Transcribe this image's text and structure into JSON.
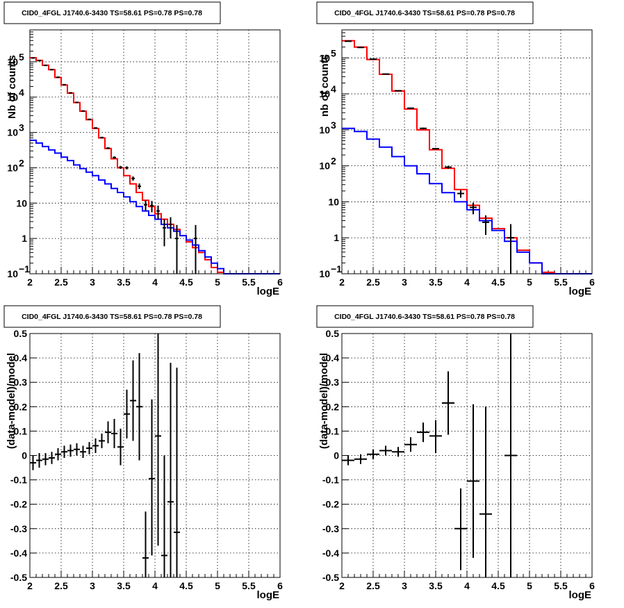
{
  "panels": [
    {
      "id": "counts-binned-fine",
      "title": "CID0_4FGL J1740.6-3430 TS=58.61 PS=0.78 PS=0.78",
      "xlabel": "logE",
      "ylabel": "Nb of counts"
    },
    {
      "id": "counts-binned-coarse",
      "title": "CID0_4FGL J1740.6-3430 TS=58.61 PS=0.78 PS=0.78",
      "xlabel": "logE",
      "ylabel": "nb of counts"
    },
    {
      "id": "residuals-fine",
      "title": "CID0_4FGL J1740.6-3430 TS=58.61 PS=0.78 PS=0.78",
      "xlabel": "logE",
      "ylabel": "(data-model)/model"
    },
    {
      "id": "residuals-coarse",
      "title": "CID0_4FGL J1740.6-3430 TS=58.61 PS=0.78 PS=0.78",
      "xlabel": "logE",
      "ylabel": "(data-model)/model"
    }
  ],
  "colors": {
    "total_model": "#ff0000",
    "source_model": "#0000ff",
    "data": "#000000"
  },
  "chart_data": [
    {
      "type": "line",
      "title": "CID0_4FGL J1740.6-3430 TS=58.61 PS=0.78 PS=0.78",
      "xlabel": "logE",
      "ylabel": "Nb of counts",
      "xlim": [
        2,
        6
      ],
      "ylim": [
        0.1,
        800000
      ],
      "yscale": "log",
      "grid": true,
      "xticks": [
        "2",
        "2.5",
        "3",
        "3.5",
        "4",
        "4.5",
        "5",
        "5.5",
        "6"
      ],
      "yticks": [
        {
          "v": 0.1,
          "label": "10",
          "sup": "−1"
        },
        {
          "v": 1,
          "label": "1"
        },
        {
          "v": 10,
          "label": "10"
        },
        {
          "v": 100,
          "label": "10",
          "sup": "2"
        },
        {
          "v": 1000,
          "label": "10",
          "sup": "3"
        },
        {
          "v": 10000,
          "label": "10",
          "sup": "4"
        },
        {
          "v": 100000,
          "label": "10",
          "sup": "5"
        }
      ],
      "bin_edges": [
        2.0,
        2.1,
        2.2,
        2.3,
        2.4,
        2.5,
        2.6,
        2.7,
        2.8,
        2.9,
        3.0,
        3.1,
        3.2,
        3.3,
        3.4,
        3.5,
        3.6,
        3.7,
        3.8,
        3.9,
        4.0,
        4.1,
        4.2,
        4.3,
        4.4,
        4.5,
        4.6,
        4.7,
        4.8,
        4.9,
        5.0,
        5.1,
        5.2,
        5.3,
        5.4,
        5.5,
        5.6,
        5.7,
        5.8,
        5.9,
        6.0
      ],
      "series": [
        {
          "style": "total_model",
          "values": [
            130000,
            110000,
            80000,
            60000,
            36000,
            22000,
            13000,
            7000,
            4000,
            2300,
            1300,
            700,
            350,
            180,
            100,
            60,
            35,
            20,
            12,
            8,
            5,
            3.5,
            2.5,
            1.8,
            1.2,
            0.8,
            0.55,
            0.4,
            0.25,
            0.15,
            0.11,
            0.1,
            0.1,
            0.1,
            0.1,
            0.1,
            0.1,
            0.1,
            0.1,
            0.1
          ]
        },
        {
          "style": "source_model",
          "values": [
            600,
            500,
            400,
            320,
            260,
            200,
            160,
            120,
            95,
            75,
            60,
            45,
            35,
            26,
            20,
            15,
            11,
            8,
            6,
            4.5,
            3.5,
            2.5,
            2.0,
            1.6,
            1.2,
            0.9,
            0.65,
            0.45,
            0.3,
            0.2,
            0.14,
            0.1,
            0.1,
            0.1,
            0.1,
            0.1,
            0.1,
            0.1,
            0.1,
            0.1
          ]
        },
        {
          "style": "data",
          "points": [
            {
              "x": 2.05,
              "y": 128000,
              "lo": 127000,
              "hi": 129000
            },
            {
              "x": 2.15,
              "y": 108000,
              "lo": 107000,
              "hi": 109000
            },
            {
              "x": 2.25,
              "y": 79000,
              "lo": 78000,
              "hi": 80000
            },
            {
              "x": 2.35,
              "y": 60000,
              "lo": 59500,
              "hi": 60500
            },
            {
              "x": 2.45,
              "y": 36500,
              "lo": 36000,
              "hi": 37000
            },
            {
              "x": 2.55,
              "y": 22500,
              "lo": 22200,
              "hi": 22800
            },
            {
              "x": 2.65,
              "y": 13200,
              "lo": 13000,
              "hi": 13400
            },
            {
              "x": 2.75,
              "y": 7100,
              "lo": 7000,
              "hi": 7200
            },
            {
              "x": 2.85,
              "y": 4050,
              "lo": 4000,
              "hi": 4100
            },
            {
              "x": 2.95,
              "y": 2350,
              "lo": 2300,
              "hi": 2400
            },
            {
              "x": 3.05,
              "y": 1340,
              "lo": 1300,
              "hi": 1380
            },
            {
              "x": 3.15,
              "y": 720,
              "lo": 690,
              "hi": 750
            },
            {
              "x": 3.25,
              "y": 360,
              "lo": 340,
              "hi": 380
            },
            {
              "x": 3.35,
              "y": 195,
              "lo": 180,
              "hi": 210
            },
            {
              "x": 3.45,
              "y": 103,
              "lo": 93,
              "hi": 113
            },
            {
              "x": 3.55,
              "y": 100,
              "lo": 90,
              "hi": 110
            },
            {
              "x": 3.65,
              "y": 50,
              "lo": 43,
              "hi": 57
            },
            {
              "x": 3.75,
              "y": 30,
              "lo": 25,
              "hi": 36
            },
            {
              "x": 3.85,
              "y": 9,
              "lo": 6,
              "hi": 12
            },
            {
              "x": 3.95,
              "y": 8.5,
              "lo": 5.5,
              "hi": 11.5
            },
            {
              "x": 4.05,
              "y": 6,
              "lo": 3.5,
              "hi": 8.5
            },
            {
              "x": 4.15,
              "y": 2,
              "lo": 0.6,
              "hi": 3.5
            },
            {
              "x": 4.25,
              "y": 2.5,
              "lo": 1.0,
              "hi": 4.0
            },
            {
              "x": 4.35,
              "y": 1,
              "lo": 0.1,
              "hi": 2.4
            },
            {
              "x": 4.65,
              "y": 1,
              "lo": 0.1,
              "hi": 2.4
            }
          ]
        }
      ]
    },
    {
      "type": "line",
      "title": "CID0_4FGL J1740.6-3430 TS=58.61 PS=0.78 PS=0.78",
      "xlabel": "logE",
      "ylabel": "nb of counts",
      "xlim": [
        2,
        6
      ],
      "ylim": [
        0.1,
        600000
      ],
      "yscale": "log",
      "grid": true,
      "xticks": [
        "2",
        "2.5",
        "3",
        "3.5",
        "4",
        "4.5",
        "5",
        "5.5",
        "6"
      ],
      "yticks": [
        {
          "v": 0.1,
          "label": "10",
          "sup": "−1"
        },
        {
          "v": 1,
          "label": "1"
        },
        {
          "v": 10,
          "label": "10"
        },
        {
          "v": 100,
          "label": "10",
          "sup": "2"
        },
        {
          "v": 1000,
          "label": "10",
          "sup": "3"
        },
        {
          "v": 10000,
          "label": "10",
          "sup": "4"
        },
        {
          "v": 100000,
          "label": "10",
          "sup": "5"
        }
      ],
      "bin_edges": [
        2.0,
        2.2,
        2.4,
        2.6,
        2.8,
        3.0,
        3.2,
        3.4,
        3.6,
        3.8,
        4.0,
        4.2,
        4.4,
        4.6,
        4.8,
        5.0,
        5.2,
        5.4,
        5.6,
        5.8,
        6.0
      ],
      "series": [
        {
          "style": "total_model",
          "values": [
            300000,
            200000,
            90000,
            35000,
            12000,
            3800,
            1000,
            280,
            85,
            22,
            8,
            3.5,
            1.8,
            1.0,
            0.45,
            0.2,
            0.11,
            0.1,
            0.1,
            0.1
          ]
        },
        {
          "style": "source_model",
          "values": [
            1100,
            900,
            550,
            330,
            180,
            100,
            60,
            32,
            18,
            10,
            6,
            3,
            1.6,
            0.8,
            0.4,
            0.2,
            0.1,
            0.1,
            0.1,
            0.1
          ]
        },
        {
          "style": "data",
          "points": [
            {
              "x": 2.1,
              "y": 290000,
              "lo": 289000,
              "hi": 291000
            },
            {
              "x": 2.3,
              "y": 195000,
              "lo": 194000,
              "hi": 196000
            },
            {
              "x": 2.5,
              "y": 92000,
              "lo": 91500,
              "hi": 92500
            },
            {
              "x": 2.7,
              "y": 35500,
              "lo": 35200,
              "hi": 35800
            },
            {
              "x": 2.9,
              "y": 12200,
              "lo": 12000,
              "hi": 12400
            },
            {
              "x": 3.1,
              "y": 4000,
              "lo": 3900,
              "hi": 4100
            },
            {
              "x": 3.3,
              "y": 1100,
              "lo": 1050,
              "hi": 1150
            },
            {
              "x": 3.5,
              "y": 300,
              "lo": 285,
              "hi": 315
            },
            {
              "x": 3.7,
              "y": 92,
              "lo": 84,
              "hi": 100
            },
            {
              "x": 3.9,
              "y": 17,
              "lo": 13,
              "hi": 21
            },
            {
              "x": 4.1,
              "y": 7,
              "lo": 4.5,
              "hi": 9.5
            },
            {
              "x": 4.3,
              "y": 2.7,
              "lo": 1.2,
              "hi": 4.2
            },
            {
              "x": 4.7,
              "y": 1,
              "lo": 0.1,
              "hi": 2.4
            }
          ]
        }
      ]
    },
    {
      "type": "scatter",
      "title": "CID0_4FGL J1740.6-3430 TS=58.61 PS=0.78 PS=0.78",
      "xlabel": "logE",
      "ylabel": "(data-model)/model",
      "xlim": [
        2,
        6
      ],
      "ylim": [
        -0.5,
        0.5
      ],
      "grid": true,
      "xticks": [
        "2",
        "2.5",
        "3",
        "3.5",
        "4",
        "4.5",
        "5",
        "5.5",
        "6"
      ],
      "yticks": [
        "-0.5",
        "-0.4",
        "-0.3",
        "-0.2",
        "-0.1",
        "0",
        "0.1",
        "0.2",
        "0.3",
        "0.4",
        "0.5"
      ],
      "x_halfwidth": 0.05,
      "points": [
        {
          "x": 2.05,
          "y": -0.03,
          "lo": -0.06,
          "hi": 0.0
        },
        {
          "x": 2.15,
          "y": -0.02,
          "lo": -0.05,
          "hi": 0.01
        },
        {
          "x": 2.25,
          "y": -0.015,
          "lo": -0.04,
          "hi": 0.01
        },
        {
          "x": 2.35,
          "y": -0.01,
          "lo": -0.035,
          "hi": 0.015
        },
        {
          "x": 2.45,
          "y": 0.005,
          "lo": -0.02,
          "hi": 0.03
        },
        {
          "x": 2.55,
          "y": 0.015,
          "lo": -0.01,
          "hi": 0.04
        },
        {
          "x": 2.65,
          "y": 0.02,
          "lo": -0.005,
          "hi": 0.045
        },
        {
          "x": 2.75,
          "y": 0.025,
          "lo": 0.0,
          "hi": 0.05
        },
        {
          "x": 2.85,
          "y": 0.015,
          "lo": -0.01,
          "hi": 0.04
        },
        {
          "x": 2.95,
          "y": 0.03,
          "lo": 0.005,
          "hi": 0.055
        },
        {
          "x": 3.05,
          "y": 0.04,
          "lo": 0.01,
          "hi": 0.07
        },
        {
          "x": 3.15,
          "y": 0.06,
          "lo": 0.03,
          "hi": 0.09
        },
        {
          "x": 3.25,
          "y": 0.095,
          "lo": 0.05,
          "hi": 0.14
        },
        {
          "x": 3.35,
          "y": 0.09,
          "lo": 0.03,
          "hi": 0.15
        },
        {
          "x": 3.45,
          "y": 0.035,
          "lo": -0.04,
          "hi": 0.11
        },
        {
          "x": 3.55,
          "y": 0.17,
          "lo": 0.07,
          "hi": 0.27
        },
        {
          "x": 3.65,
          "y": 0.225,
          "lo": 0.06,
          "hi": 0.39
        },
        {
          "x": 3.75,
          "y": 0.2,
          "lo": -0.02,
          "hi": 0.42
        },
        {
          "x": 3.85,
          "y": -0.42,
          "lo": -0.5,
          "hi": -0.23
        },
        {
          "x": 3.95,
          "y": -0.095,
          "lo": -0.41,
          "hi": 0.23
        },
        {
          "x": 4.05,
          "y": 0.08,
          "lo": -0.37,
          "hi": 0.5
        },
        {
          "x": 4.15,
          "y": -0.41,
          "lo": -0.5,
          "hi": 0.0
        },
        {
          "x": 4.25,
          "y": -0.19,
          "lo": -0.5,
          "hi": 0.38
        },
        {
          "x": 4.35,
          "y": -0.315,
          "lo": -0.5,
          "hi": 0.36
        }
      ]
    },
    {
      "type": "scatter",
      "title": "CID0_4FGL J1740.6-3430 TS=58.61 PS=0.78 PS=0.78",
      "xlabel": "logE",
      "ylabel": "(data-model)/model",
      "xlim": [
        2,
        6
      ],
      "ylim": [
        -0.5,
        0.5
      ],
      "grid": true,
      "xticks": [
        "2",
        "2.5",
        "3",
        "3.5",
        "4",
        "4.5",
        "5",
        "5.5",
        "6"
      ],
      "yticks": [
        "-0.5",
        "-0.4",
        "-0.3",
        "-0.2",
        "-0.1",
        "0",
        "0.1",
        "0.2",
        "0.3",
        "0.4",
        "0.5"
      ],
      "x_halfwidth": 0.1,
      "points": [
        {
          "x": 2.1,
          "y": -0.02,
          "lo": -0.04,
          "hi": 0.0
        },
        {
          "x": 2.3,
          "y": -0.015,
          "lo": -0.035,
          "hi": 0.005
        },
        {
          "x": 2.5,
          "y": 0.005,
          "lo": -0.015,
          "hi": 0.025
        },
        {
          "x": 2.7,
          "y": 0.02,
          "lo": 0.0,
          "hi": 0.04
        },
        {
          "x": 2.9,
          "y": 0.015,
          "lo": -0.005,
          "hi": 0.035
        },
        {
          "x": 3.1,
          "y": 0.045,
          "lo": 0.015,
          "hi": 0.075
        },
        {
          "x": 3.3,
          "y": 0.095,
          "lo": 0.055,
          "hi": 0.135
        },
        {
          "x": 3.5,
          "y": 0.08,
          "lo": 0.01,
          "hi": 0.145
        },
        {
          "x": 3.7,
          "y": 0.215,
          "lo": 0.085,
          "hi": 0.345
        },
        {
          "x": 3.9,
          "y": -0.3,
          "lo": -0.47,
          "hi": -0.135
        },
        {
          "x": 4.1,
          "y": -0.105,
          "lo": -0.42,
          "hi": 0.21
        },
        {
          "x": 4.3,
          "y": -0.24,
          "lo": -0.5,
          "hi": 0.2
        },
        {
          "x": 4.7,
          "y": 0.0,
          "lo": -0.5,
          "hi": 0.5
        }
      ]
    }
  ]
}
